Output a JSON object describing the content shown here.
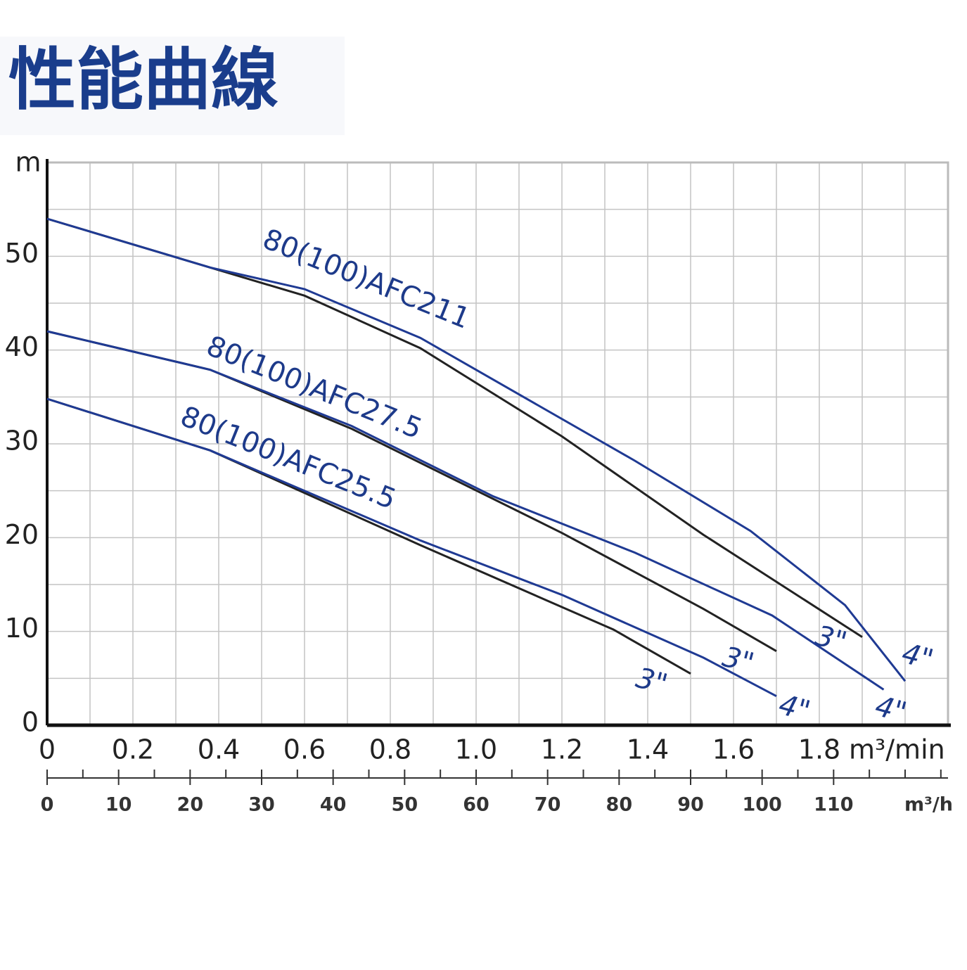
{
  "chart_data": {
    "type": "line",
    "title": "性能曲線",
    "ylabel": "m",
    "xlabel": "m³/min",
    "x2label": "m³/h",
    "xlim": [
      0,
      2.1
    ],
    "ylim": [
      0,
      60
    ],
    "x2lim": [
      0,
      126
    ],
    "xticks": [
      0,
      0.2,
      0.4,
      0.6,
      0.8,
      {
        "value": 1,
        "label": "1.0"
      },
      1.2,
      1.4,
      1.6,
      1.8
    ],
    "yticks": [
      0,
      10,
      20,
      30,
      40,
      50
    ],
    "x2ticks": [
      0,
      10,
      20,
      30,
      40,
      50,
      60,
      70,
      80,
      90,
      100,
      110
    ],
    "x2minor": [
      5,
      15,
      25,
      35,
      45,
      55,
      65,
      75,
      85,
      95,
      105,
      115,
      120,
      125
    ],
    "xgrid": [
      0.1,
      0.2,
      0.3,
      0.4,
      0.5,
      0.6,
      0.7,
      0.8,
      0.9,
      1.0,
      1.1,
      1.2,
      1.3,
      1.4,
      1.5,
      1.6,
      1.7,
      1.8,
      1.9,
      2.0
    ],
    "ygrid": [
      5,
      10,
      15,
      20,
      25,
      30,
      35,
      40,
      45,
      50,
      55
    ],
    "grid": true,
    "curves": [
      {
        "name": "80(100)AFC211",
        "series": [
          {
            "size": "3\"",
            "color": "#222222",
            "x": [
              0,
              0.38,
              0.6,
              0.87,
              1.2,
              1.53,
              1.9
            ],
            "values": [
              54.0,
              48.8,
              45.8,
              40.2,
              30.8,
              20.3,
              9.4
            ]
          },
          {
            "size": "4\"",
            "color": "#1f3a93",
            "x": [
              0,
              0.38,
              0.6,
              0.87,
              1.37,
              1.64,
              1.86,
              2.0
            ],
            "values": [
              54.0,
              48.8,
              46.5,
              41.3,
              28.2,
              20.7,
              12.8,
              4.7
            ]
          }
        ]
      },
      {
        "name": "80(100)AFC27.5",
        "series": [
          {
            "size": "3\"",
            "color": "#222222",
            "x": [
              0,
              0.38,
              0.71,
              1.2,
              1.53,
              1.7
            ],
            "values": [
              42.0,
              37.9,
              31.6,
              20.5,
              12.4,
              7.9
            ]
          },
          {
            "size": "4\"",
            "color": "#1f3a93",
            "x": [
              0,
              0.38,
              0.71,
              1.04,
              1.37,
              1.69,
              1.95
            ],
            "values": [
              42.0,
              37.9,
              31.9,
              24.4,
              18.4,
              11.7,
              3.8
            ]
          }
        ]
      },
      {
        "name": "80(100)AFC25.5",
        "series": [
          {
            "size": "3\"",
            "color": "#222222",
            "x": [
              0,
              0.38,
              0.87,
              1.32,
              1.5
            ],
            "values": [
              34.8,
              29.3,
              19.2,
              10.2,
              5.5
            ]
          },
          {
            "size": "4\"",
            "color": "#1f3a93",
            "x": [
              0,
              0.38,
              0.87,
              1.2,
              1.53,
              1.7
            ],
            "values": [
              34.8,
              29.3,
              19.7,
              13.9,
              7.2,
              3.1
            ]
          }
        ]
      }
    ]
  }
}
